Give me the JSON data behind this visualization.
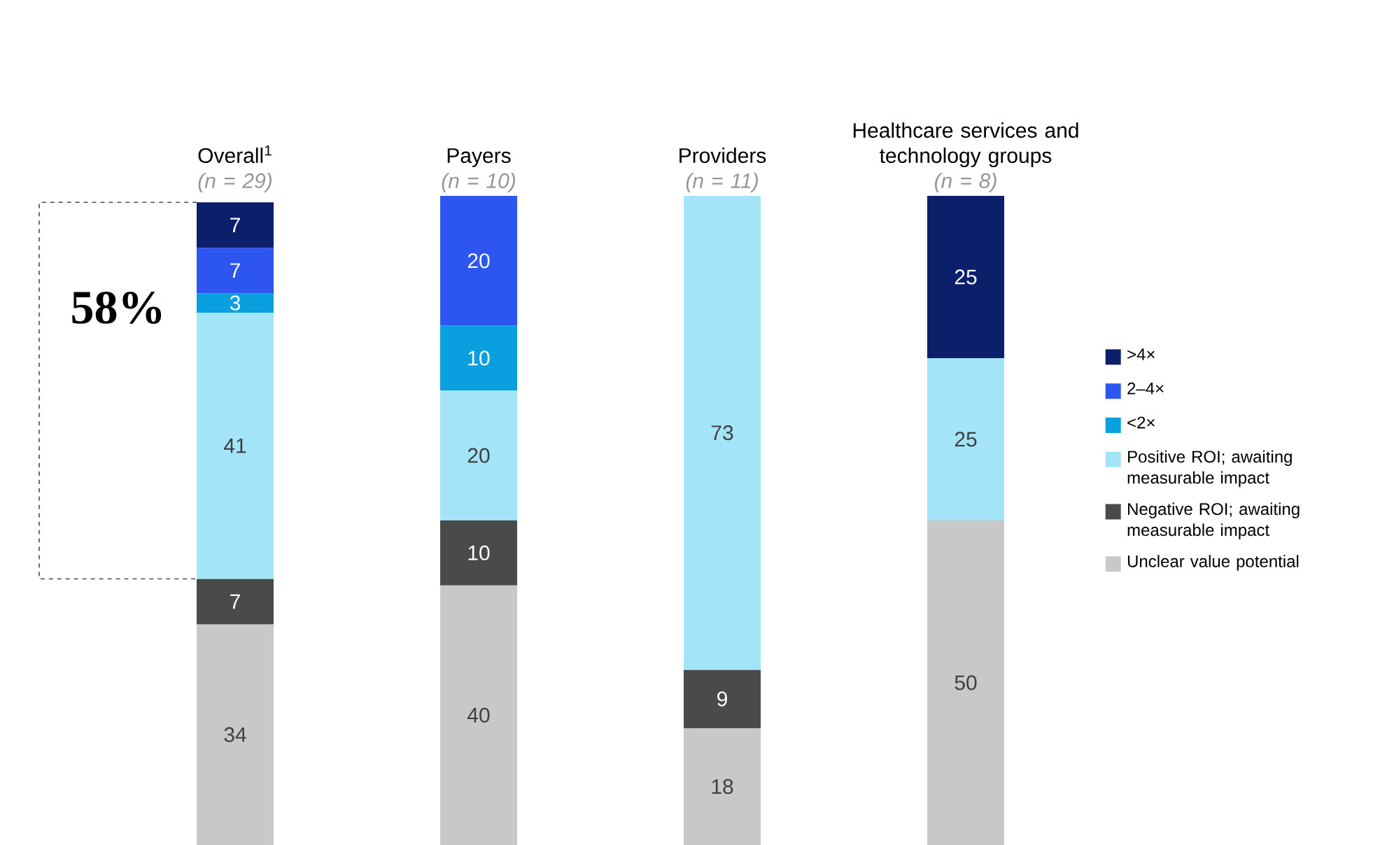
{
  "chart_data": {
    "type": "bar",
    "stacked": true,
    "categories": [
      "Overall$^{1}$",
      "Payers",
      "Providers",
      "Healthcare services and technology groups"
    ],
    "series": [
      {
        "name": "Unclear value potential",
        "color": "#c8c8c8",
        "values": [
          34,
          40,
          18,
          50
        ]
      },
      {
        "name": "Negative ROI; awaiting measurable impact",
        "color": "#4a4a4a",
        "values": [
          7,
          10,
          9,
          null
        ]
      },
      {
        "name": "Positive ROI; awaiting measurable impact",
        "color": "#a4e4f9",
        "values": [
          41,
          20,
          73,
          25
        ]
      },
      {
        "name": "<2×",
        "color": "#0aa0e0",
        "values": [
          3,
          10,
          null,
          null
        ]
      },
      {
        "name": "2–4×",
        "color": "#2d55f0",
        "values": [
          7,
          20,
          null,
          null
        ]
      },
      {
        "name": ">4×",
        "color": "#0b1f6b",
        "values": [
          7,
          null,
          null,
          25
        ]
      }
    ],
    "data_labels": true,
    "legend": "right",
    "annotations": [
      "(n = 29)",
      "(n = 10)",
      "(n = 11)",
      "(n = 8)",
      "58%"
    ]
  }
}
